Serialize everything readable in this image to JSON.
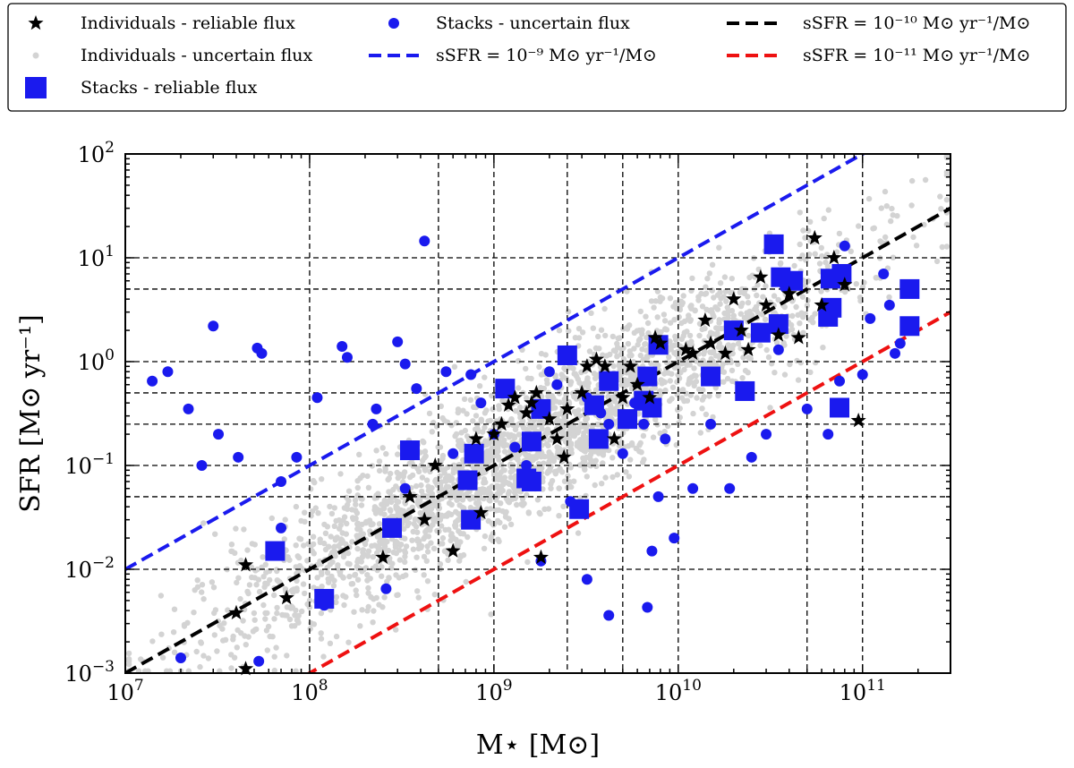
{
  "chart_data": {
    "type": "scatter",
    "xscale": "log",
    "yscale": "log",
    "xlim": [
      10000000.0,
      300000000000.0
    ],
    "ylim": [
      0.001,
      100
    ],
    "xlabel": "M⋆ [M⊙]",
    "ylabel": "SFR [M⊙ yr⁻¹]",
    "x_ticks": [
      {
        "value": 10000000.0,
        "base": "10",
        "exp": "7"
      },
      {
        "value": 100000000.0,
        "base": "10",
        "exp": "8"
      },
      {
        "value": 1000000000.0,
        "base": "10",
        "exp": "9"
      },
      {
        "value": 10000000000.0,
        "base": "10",
        "exp": "10"
      },
      {
        "value": 100000000000.0,
        "base": "10",
        "exp": "11"
      }
    ],
    "y_ticks": [
      {
        "value": 0.001,
        "base": "10",
        "exp": "−3"
      },
      {
        "value": 0.01,
        "base": "10",
        "exp": "−2"
      },
      {
        "value": 0.1,
        "base": "10",
        "exp": "−1"
      },
      {
        "value": 1,
        "base": "10",
        "exp": "0"
      },
      {
        "value": 10,
        "base": "10",
        "exp": "1"
      },
      {
        "value": 100,
        "base": "10",
        "exp": "2"
      }
    ],
    "grid_x": [
      100000000.0,
      500000000.0,
      1000000000.0,
      2500000000.0,
      5000000000.0,
      10000000000.0,
      50000000000.0,
      100000000000.0
    ],
    "grid_y": [
      0.01,
      0.05,
      0.1,
      0.25,
      0.5,
      1,
      5,
      10
    ],
    "ssfr_lines": [
      {
        "name": "sSFR = 10⁻⁹ M⊙ yr⁻¹/M⊙",
        "ssfr": 1e-09,
        "color": "#1a1aee"
      },
      {
        "name": "sSFR = 10⁻¹⁰ M⊙ yr⁻¹/M⊙",
        "ssfr": 1e-10,
        "color": "#000000"
      },
      {
        "name": "sSFR = 10⁻¹¹ M⊙ yr⁻¹/M⊙",
        "ssfr": 1e-11,
        "color": "#ee1111"
      }
    ],
    "series": [
      {
        "name": "Individuals - uncertain flux",
        "marker": "dot-small",
        "color": "#d3d3d3",
        "distribution": {
          "count": 2600,
          "seed": 7,
          "ssfr_center": 1e-10,
          "mass_center": 1500000000.0
        }
      },
      {
        "name": "Individuals - reliable flux",
        "marker": "star",
        "color": "#000000",
        "points": [
          [
            45000000.0,
            0.011
          ],
          [
            40000000.0,
            0.0038
          ],
          [
            75000000.0,
            0.0053
          ],
          [
            45000000.0,
            0.0011
          ],
          [
            250000000.0,
            0.013
          ],
          [
            350000000.0,
            0.05
          ],
          [
            420000000.0,
            0.03
          ],
          [
            480000000.0,
            0.1
          ],
          [
            600000000.0,
            0.015
          ],
          [
            800000000.0,
            0.18
          ],
          [
            850000000.0,
            0.035
          ],
          [
            1000000000.0,
            0.2
          ],
          [
            1100000000.0,
            0.25
          ],
          [
            1200000000.0,
            0.38
          ],
          [
            1300000000.0,
            0.45
          ],
          [
            1500000000.0,
            0.32
          ],
          [
            1600000000.0,
            0.4
          ],
          [
            1700000000.0,
            0.5
          ],
          [
            1800000000.0,
            0.013
          ],
          [
            2000000000.0,
            0.28
          ],
          [
            2200000000.0,
            0.18
          ],
          [
            2500000000.0,
            0.35
          ],
          [
            3000000000.0,
            0.5
          ],
          [
            3200000000.0,
            0.9
          ],
          [
            3600000000.0,
            1.05
          ],
          [
            4000000000.0,
            0.9
          ],
          [
            4500000000.0,
            0.18
          ],
          [
            5000000000.0,
            0.45
          ],
          [
            5500000000.0,
            0.9
          ],
          [
            6000000000.0,
            0.6
          ],
          [
            7000000000.0,
            0.45
          ],
          [
            7500000000.0,
            1.7
          ],
          [
            8000000000.0,
            1.5
          ],
          [
            11000000000.0,
            1.3
          ],
          [
            12000000000.0,
            1.2
          ],
          [
            14000000000.0,
            2.5
          ],
          [
            15000000000.0,
            1.5
          ],
          [
            18000000000.0,
            1.2
          ],
          [
            20000000000.0,
            4
          ],
          [
            22000000000.0,
            2
          ],
          [
            24000000000.0,
            1.3
          ],
          [
            28000000000.0,
            6.5
          ],
          [
            30000000000.0,
            3.5
          ],
          [
            35000000000.0,
            1.8
          ],
          [
            40000000000.0,
            4.5
          ],
          [
            45000000000.0,
            1.7
          ],
          [
            55000000000.0,
            15.5
          ],
          [
            60000000000.0,
            3.5
          ],
          [
            70000000000.0,
            10
          ],
          [
            80000000000.0,
            5.5
          ],
          [
            95000000000.0,
            0.27
          ],
          [
            2400000000.0,
            0.12
          ]
        ]
      },
      {
        "name": "Stacks - uncertain flux",
        "marker": "circle",
        "color": "#1a1aee",
        "points": [
          [
            14000000.0,
            0.65
          ],
          [
            17000000.0,
            0.8
          ],
          [
            22000000.0,
            0.35
          ],
          [
            26000000.0,
            0.1
          ],
          [
            30000000.0,
            2.2
          ],
          [
            32000000.0,
            0.2
          ],
          [
            41000000.0,
            0.12
          ],
          [
            52000000.0,
            1.35
          ],
          [
            55000000.0,
            1.2
          ],
          [
            70000000.0,
            0.07
          ],
          [
            85000000.0,
            0.12
          ],
          [
            110000000.0,
            0.45
          ],
          [
            150000000.0,
            1.4
          ],
          [
            160000000.0,
            1.1
          ],
          [
            220000000.0,
            0.25
          ],
          [
            230000000.0,
            0.35
          ],
          [
            300000000.0,
            1.55
          ],
          [
            330000000.0,
            0.95
          ],
          [
            380000000.0,
            0.55
          ],
          [
            330000000.0,
            0.06
          ],
          [
            420000000.0,
            14.5
          ],
          [
            550000000.0,
            0.8
          ],
          [
            600000000.0,
            0.13
          ],
          [
            750000000.0,
            0.75
          ],
          [
            850000000.0,
            0.4
          ],
          [
            1000000000.0,
            0.2
          ],
          [
            1300000000.0,
            0.15
          ],
          [
            1500000000.0,
            0.1
          ],
          [
            2000000000.0,
            0.8
          ],
          [
            2200000000.0,
            0.6
          ],
          [
            2600000000.0,
            0.045
          ],
          [
            3200000000.0,
            0.45
          ],
          [
            3800000000.0,
            0.32
          ],
          [
            4200000000.0,
            0.25
          ],
          [
            5000000000.0,
            0.13
          ],
          [
            5800000000.0,
            0.4
          ],
          [
            6500000000.0,
            0.25
          ],
          [
            7200000000.0,
            0.015
          ],
          [
            7800000000.0,
            0.05
          ],
          [
            8500000000.0,
            0.18
          ],
          [
            9500000000.0,
            0.02
          ],
          [
            12000000000.0,
            0.06
          ],
          [
            15000000000.0,
            0.25
          ],
          [
            19000000000.0,
            0.06
          ],
          [
            25000000000.0,
            0.12
          ],
          [
            30000000000.0,
            0.2
          ],
          [
            35000000000.0,
            1.3
          ],
          [
            38000000000.0,
            5.2
          ],
          [
            50000000000.0,
            0.35
          ],
          [
            65000000000.0,
            0.2
          ],
          [
            75000000000.0,
            0.65
          ],
          [
            100000000000.0,
            0.75
          ],
          [
            110000000000.0,
            2.6
          ],
          [
            130000000000.0,
            7
          ],
          [
            150000000000.0,
            1.2
          ],
          [
            160000000000.0,
            1.5
          ],
          [
            140000000000.0,
            3.5
          ],
          [
            80000000000.0,
            13
          ],
          [
            3200000000.0,
            0.008
          ],
          [
            4200000000.0,
            0.0036
          ],
          [
            6800000000.0,
            0.0043
          ],
          [
            260000000.0,
            0.0065
          ],
          [
            120000000.0,
            0.0045
          ],
          [
            53000000.0,
            0.0013
          ],
          [
            20000000.0,
            0.0014
          ],
          [
            70000000.0,
            0.025
          ],
          [
            1800000000.0,
            0.012
          ]
        ]
      },
      {
        "name": "Stacks - reliable flux",
        "marker": "square",
        "color": "#1a1aee",
        "points": [
          [
            65000000.0,
            0.015
          ],
          [
            120000000.0,
            0.0052
          ],
          [
            280000000.0,
            0.025
          ],
          [
            350000000.0,
            0.14
          ],
          [
            720000000.0,
            0.072
          ],
          [
            780000000.0,
            0.13
          ],
          [
            750000000.0,
            0.03
          ],
          [
            1150000000.0,
            0.55
          ],
          [
            1500000000.0,
            0.075
          ],
          [
            1600000000.0,
            0.07
          ],
          [
            1600000000.0,
            0.17
          ],
          [
            1800000000.0,
            0.35
          ],
          [
            2500000000.0,
            1.15
          ],
          [
            2900000000.0,
            0.038
          ],
          [
            3500000000.0,
            0.38
          ],
          [
            3700000000.0,
            0.18
          ],
          [
            4200000000.0,
            0.65
          ],
          [
            5300000000.0,
            0.28
          ],
          [
            6500000000.0,
            0.42
          ],
          [
            6800000000.0,
            0.72
          ],
          [
            7200000000.0,
            0.36
          ],
          [
            7800000000.0,
            1.45
          ],
          [
            15000000000.0,
            0.72
          ],
          [
            20000000000.0,
            2
          ],
          [
            23000000000.0,
            0.52
          ],
          [
            28000000000.0,
            1.9
          ],
          [
            33000000000.0,
            13.5
          ],
          [
            35000000000.0,
            2.3
          ],
          [
            36000000000.0,
            6.5
          ],
          [
            42000000000.0,
            6
          ],
          [
            65000000000.0,
            2.7
          ],
          [
            68000000000.0,
            3.3
          ],
          [
            67000000000.0,
            6.3
          ],
          [
            77000000000.0,
            7
          ],
          [
            75000000000.0,
            0.36
          ],
          [
            180000000000.0,
            5
          ],
          [
            180000000000.0,
            2.2
          ]
        ]
      }
    ],
    "legend": {
      "placement": "top, outside plot",
      "entries": [
        {
          "label": "Individuals - reliable flux",
          "marker": "star",
          "color": "#000000"
        },
        {
          "label": "Individuals - uncertain flux",
          "marker": "dot-small",
          "color": "#d3d3d3"
        },
        {
          "label": "Stacks - reliable flux",
          "marker": "square",
          "color": "#1a1aee"
        },
        {
          "label": "Stacks - uncertain flux",
          "marker": "circle",
          "color": "#1a1aee"
        },
        {
          "label": "sSFR = 10⁻⁹ M⊙ yr⁻¹/M⊙",
          "marker": "dashed-line",
          "color": "#1a1aee"
        },
        {
          "label": "sSFR = 10⁻¹⁰ M⊙ yr⁻¹/M⊙",
          "marker": "dashed-line",
          "color": "#000000"
        },
        {
          "label": "sSFR = 10⁻¹¹ M⊙ yr⁻¹/M⊙",
          "marker": "dashed-line",
          "color": "#ee1111"
        }
      ]
    }
  }
}
